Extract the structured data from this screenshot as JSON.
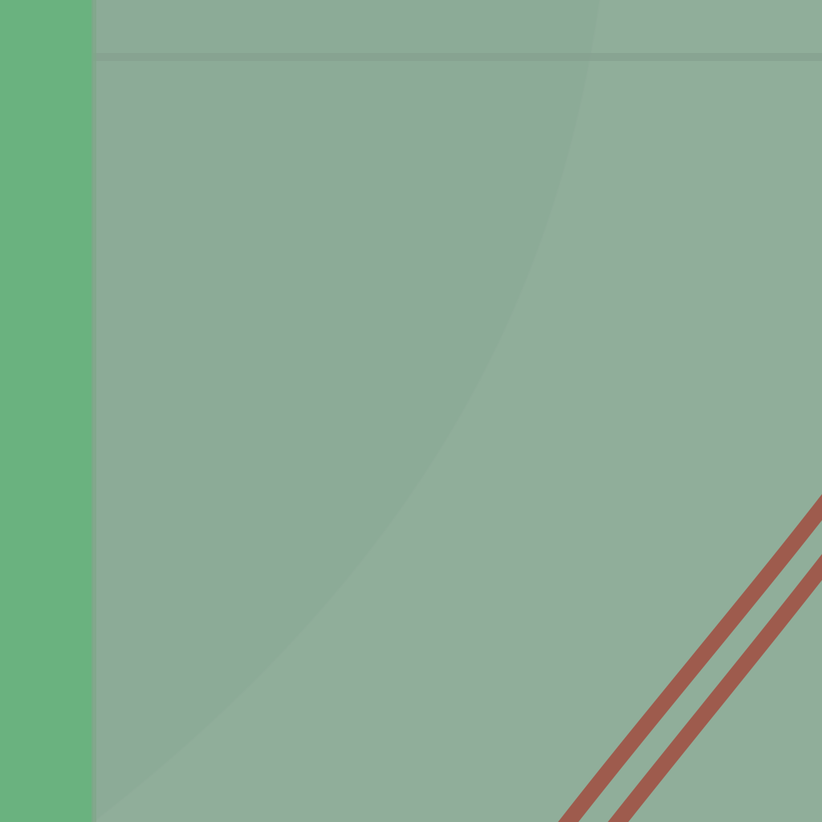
{
  "map": {
    "colors": {
      "background": "#90ae9a",
      "park_area": "#6ab27f",
      "park_edge": "#7fa68a",
      "land_shaded": "#8cab97",
      "land_light": "#91ae9b",
      "grid_line": "#84a08e",
      "rail_line": "#9e5b4d"
    },
    "features": [
      {
        "kind": "park",
        "color_key": "park_area"
      },
      {
        "kind": "land-parcel",
        "color_key": "land_shaded"
      },
      {
        "kind": "boundary-line",
        "color_key": "grid_line"
      },
      {
        "kind": "rail-track",
        "color_key": "rail_line"
      },
      {
        "kind": "rail-track",
        "color_key": "rail_line"
      }
    ]
  }
}
